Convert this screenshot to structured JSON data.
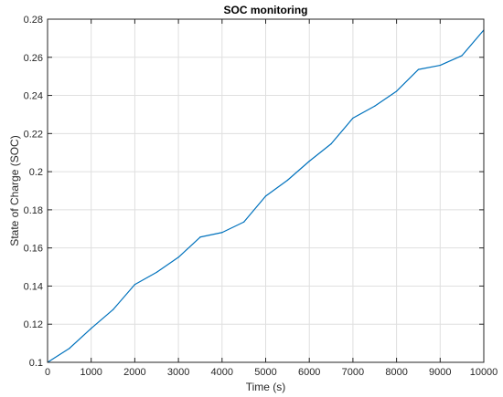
{
  "chart_data": {
    "type": "line",
    "title": "SOC monitoring",
    "xlabel": "Time (s)",
    "ylabel": "State of Charge (SOC)",
    "xlim": [
      0,
      10000
    ],
    "ylim": [
      0.1,
      0.28
    ],
    "xticks": [
      0,
      1000,
      2000,
      3000,
      4000,
      5000,
      6000,
      7000,
      8000,
      9000,
      10000
    ],
    "yticks": [
      0.1,
      0.12,
      0.14,
      0.16,
      0.18,
      0.2,
      0.22,
      0.24,
      0.26,
      0.28
    ],
    "xtick_labels": [
      "0",
      "1000",
      "2000",
      "3000",
      "4000",
      "5000",
      "6000",
      "7000",
      "8000",
      "9000",
      "10000"
    ],
    "ytick_labels": [
      "0.1",
      "0.12",
      "0.14",
      "0.16",
      "0.18",
      "0.2",
      "0.22",
      "0.24",
      "0.26",
      "0.28"
    ],
    "grid": true,
    "line_color": "#0072BD",
    "series": [
      {
        "x": [
          0,
          500,
          1000,
          1500,
          2000,
          2500,
          3000,
          3500,
          4000,
          4500,
          5000,
          5500,
          6000,
          6500,
          7000,
          7500,
          8000,
          8500,
          9000,
          9500,
          10000
        ],
        "values": [
          0.1,
          0.1073,
          0.1178,
          0.1276,
          0.1408,
          0.1472,
          0.1551,
          0.1657,
          0.1681,
          0.1736,
          0.1872,
          0.1955,
          0.2055,
          0.2146,
          0.2281,
          0.2344,
          0.2422,
          0.2536,
          0.2558,
          0.2609,
          0.2743
        ]
      }
    ]
  }
}
